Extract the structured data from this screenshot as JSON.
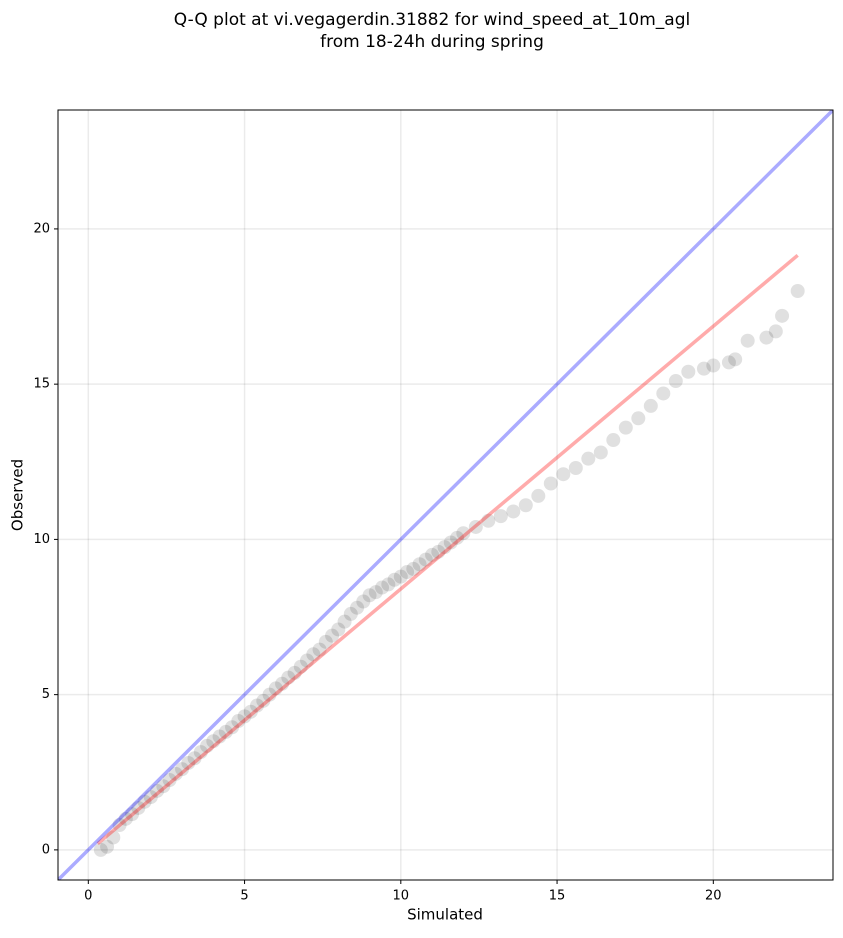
{
  "chart_data": {
    "type": "scatter",
    "title": [
      "Q-Q plot at vi.vegagerdin.31882 for wind_speed_at_10m_agl",
      "from 18-24h during spring"
    ],
    "x_label": "Simulated",
    "y_label": "Observed",
    "color": "#000000",
    "alpha": 0.12,
    "x": [
      0.4,
      0.6,
      0.8,
      1.0,
      1.2,
      1.4,
      1.6,
      1.8,
      2.0,
      2.2,
      2.4,
      2.6,
      2.8,
      3.0,
      3.2,
      3.4,
      3.6,
      3.8,
      4.0,
      4.2,
      4.4,
      4.6,
      4.8,
      5.0,
      5.2,
      5.4,
      5.6,
      5.8,
      6.0,
      6.2,
      6.4,
      6.6,
      6.8,
      7.0,
      7.2,
      7.4,
      7.6,
      7.8,
      8.0,
      8.2,
      8.4,
      8.6,
      8.8,
      9.0,
      9.2,
      9.4,
      9.6,
      9.8,
      10.0,
      10.2,
      10.4,
      10.6,
      10.8,
      11.0,
      11.2,
      11.4,
      11.6,
      11.8,
      12.0,
      12.4,
      12.8,
      13.2,
      13.6,
      14.0,
      14.4,
      14.8,
      15.2,
      15.6,
      16.0,
      16.4,
      16.8,
      17.2,
      17.6,
      18.0,
      18.4,
      18.8,
      19.2,
      19.7,
      20.0,
      20.5,
      20.7,
      21.1,
      21.7,
      22.0,
      22.2,
      22.7
    ],
    "values": [
      0.0,
      0.1,
      0.4,
      0.8,
      1.0,
      1.15,
      1.35,
      1.55,
      1.7,
      1.9,
      2.05,
      2.25,
      2.45,
      2.6,
      2.8,
      2.95,
      3.15,
      3.35,
      3.5,
      3.65,
      3.8,
      3.95,
      4.15,
      4.3,
      4.45,
      4.65,
      4.8,
      5.0,
      5.2,
      5.35,
      5.55,
      5.7,
      5.9,
      6.1,
      6.3,
      6.45,
      6.7,
      6.9,
      7.1,
      7.35,
      7.6,
      7.8,
      8.0,
      8.2,
      8.3,
      8.45,
      8.55,
      8.7,
      8.8,
      8.95,
      9.05,
      9.2,
      9.35,
      9.5,
      9.6,
      9.75,
      9.9,
      10.05,
      10.2,
      10.4,
      10.6,
      10.75,
      10.9,
      11.1,
      11.4,
      11.8,
      12.1,
      12.3,
      12.6,
      12.8,
      13.2,
      13.6,
      13.9,
      14.3,
      14.7,
      15.1,
      15.4,
      15.5,
      15.6,
      15.7,
      15.8,
      16.4,
      16.5,
      16.7,
      17.2,
      18.0
    ],
    "lines": [
      {
        "color": "#ff0000",
        "x": [
          0.3,
          22.7
        ],
        "values": [
          0.2,
          19.15
        ]
      },
      {
        "color": "#0000ff",
        "x": [
          -0.97,
          23.83
        ],
        "values": [
          -0.97,
          23.83
        ]
      }
    ],
    "line_alpha": 0.33,
    "xlim": [
      -0.97,
      23.83
    ],
    "ylim": [
      -0.97,
      23.83
    ],
    "xticks": [
      0,
      5,
      10,
      15,
      20
    ],
    "yticks": [
      0,
      5,
      10,
      15,
      20
    ],
    "grid": true
  }
}
